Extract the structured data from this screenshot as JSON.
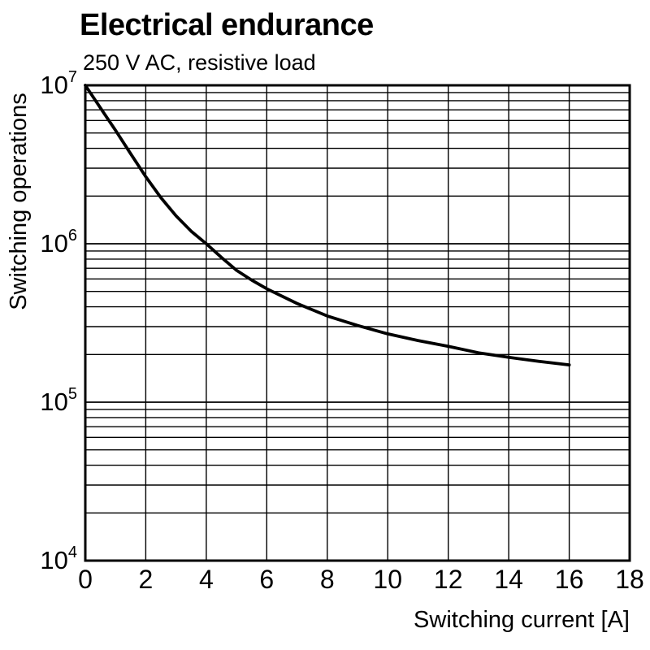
{
  "chart_data": {
    "type": "line",
    "title": "Electrical endurance",
    "subtitle": "250 V AC, resistive load",
    "xlabel": "Switching current [A]",
    "ylabel": "Switching operations",
    "xlim": [
      0,
      18
    ],
    "x_ticks": [
      0,
      2,
      4,
      6,
      8,
      10,
      12,
      14,
      16,
      18
    ],
    "y_scale": "log",
    "log_ylim": [
      4,
      7
    ],
    "y_ticks": [
      {
        "mantissa": "10",
        "exponent": "4",
        "value": 10000
      },
      {
        "mantissa": "10",
        "exponent": "5",
        "value": 100000
      },
      {
        "mantissa": "10",
        "exponent": "6",
        "value": 1000000
      },
      {
        "mantissa": "10",
        "exponent": "7",
        "value": 10000000
      }
    ],
    "grid": {
      "minor_log_subdivisions": true,
      "vertical_at_ticks": true
    },
    "line_color": "#000000",
    "series": [
      {
        "name": "Electrical endurance, 250 V AC resistive load",
        "color": "#000000",
        "x": [
          0,
          0.5,
          1,
          1.5,
          2,
          2.5,
          3,
          3.5,
          4,
          4.5,
          5,
          5.5,
          6,
          7,
          8,
          9,
          10,
          11,
          12,
          13,
          14,
          15,
          16
        ],
        "y": [
          10000000,
          7200000,
          5200000,
          3700000,
          2650000,
          1950000,
          1500000,
          1200000,
          1000000,
          820000,
          680000,
          590000,
          520000,
          420000,
          350000,
          305000,
          270000,
          245000,
          225000,
          205000,
          192000,
          181000,
          172000
        ]
      }
    ]
  }
}
